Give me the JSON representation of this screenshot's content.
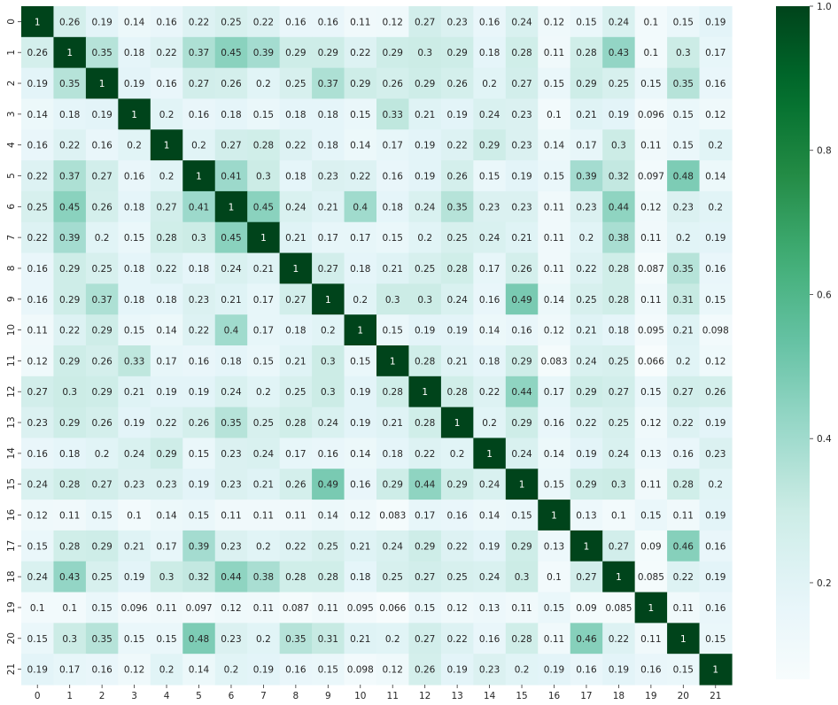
{
  "chart_data": {
    "type": "heatmap",
    "title": "",
    "xlabel": "",
    "ylabel": "",
    "x_labels": [
      "0",
      "1",
      "2",
      "3",
      "4",
      "5",
      "6",
      "7",
      "8",
      "9",
      "10",
      "11",
      "12",
      "13",
      "14",
      "15",
      "16",
      "17",
      "18",
      "19",
      "20",
      "21"
    ],
    "y_labels": [
      "0",
      "1",
      "2",
      "3",
      "4",
      "5",
      "6",
      "7",
      "8",
      "9",
      "10",
      "11",
      "12",
      "13",
      "14",
      "15",
      "16",
      "17",
      "18",
      "19",
      "20",
      "21"
    ],
    "annotations": true,
    "colormap": "BuGn",
    "colors": {
      "low": "#f7fcfd",
      "mid": "#66c2a4",
      "high": "#00441b"
    },
    "vmin": 0.066,
    "vmax": 1.0,
    "colorbar_ticks": [
      "0.2",
      "0.4",
      "0.6",
      "0.8",
      "1.0"
    ],
    "matrix": [
      [
        1,
        0.26,
        0.19,
        0.14,
        0.16,
        0.22,
        0.25,
        0.22,
        0.16,
        0.16,
        0.11,
        0.12,
        0.27,
        0.23,
        0.16,
        0.24,
        0.12,
        0.15,
        0.24,
        0.1,
        0.15,
        0.19
      ],
      [
        0.26,
        1,
        0.35,
        0.18,
        0.22,
        0.37,
        0.45,
        0.39,
        0.29,
        0.29,
        0.22,
        0.29,
        0.3,
        0.29,
        0.18,
        0.28,
        0.11,
        0.28,
        0.43,
        0.1,
        0.3,
        0.17
      ],
      [
        0.19,
        0.35,
        1,
        0.19,
        0.16,
        0.27,
        0.26,
        0.2,
        0.25,
        0.37,
        0.29,
        0.26,
        0.29,
        0.26,
        0.2,
        0.27,
        0.15,
        0.29,
        0.25,
        0.15,
        0.35,
        0.16
      ],
      [
        0.14,
        0.18,
        0.19,
        1,
        0.2,
        0.16,
        0.18,
        0.15,
        0.18,
        0.18,
        0.15,
        0.33,
        0.21,
        0.19,
        0.24,
        0.23,
        0.1,
        0.21,
        0.19,
        0.096,
        0.15,
        0.12
      ],
      [
        0.16,
        0.22,
        0.16,
        0.2,
        1,
        0.2,
        0.27,
        0.28,
        0.22,
        0.18,
        0.14,
        0.17,
        0.19,
        0.22,
        0.29,
        0.23,
        0.14,
        0.17,
        0.3,
        0.11,
        0.15,
        0.2
      ],
      [
        0.22,
        0.37,
        0.27,
        0.16,
        0.2,
        1,
        0.41,
        0.3,
        0.18,
        0.23,
        0.22,
        0.16,
        0.19,
        0.26,
        0.15,
        0.19,
        0.15,
        0.39,
        0.32,
        0.097,
        0.48,
        0.14
      ],
      [
        0.25,
        0.45,
        0.26,
        0.18,
        0.27,
        0.41,
        1,
        0.45,
        0.24,
        0.21,
        0.4,
        0.18,
        0.24,
        0.35,
        0.23,
        0.23,
        0.11,
        0.23,
        0.44,
        0.12,
        0.23,
        0.2
      ],
      [
        0.22,
        0.39,
        0.2,
        0.15,
        0.28,
        0.3,
        0.45,
        1,
        0.21,
        0.17,
        0.17,
        0.15,
        0.2,
        0.25,
        0.24,
        0.21,
        0.11,
        0.2,
        0.38,
        0.11,
        0.2,
        0.19
      ],
      [
        0.16,
        0.29,
        0.25,
        0.18,
        0.22,
        0.18,
        0.24,
        0.21,
        1,
        0.27,
        0.18,
        0.21,
        0.25,
        0.28,
        0.17,
        0.26,
        0.11,
        0.22,
        0.28,
        0.087,
        0.35,
        0.16
      ],
      [
        0.16,
        0.29,
        0.37,
        0.18,
        0.18,
        0.23,
        0.21,
        0.17,
        0.27,
        1,
        0.2,
        0.3,
        0.3,
        0.24,
        0.16,
        0.49,
        0.14,
        0.25,
        0.28,
        0.11,
        0.31,
        0.15
      ],
      [
        0.11,
        0.22,
        0.29,
        0.15,
        0.14,
        0.22,
        0.4,
        0.17,
        0.18,
        0.2,
        1,
        0.15,
        0.19,
        0.19,
        0.14,
        0.16,
        0.12,
        0.21,
        0.18,
        0.095,
        0.21,
        0.098
      ],
      [
        0.12,
        0.29,
        0.26,
        0.33,
        0.17,
        0.16,
        0.18,
        0.15,
        0.21,
        0.3,
        0.15,
        1,
        0.28,
        0.21,
        0.18,
        0.29,
        0.083,
        0.24,
        0.25,
        0.066,
        0.2,
        0.12
      ],
      [
        0.27,
        0.3,
        0.29,
        0.21,
        0.19,
        0.19,
        0.24,
        0.2,
        0.25,
        0.3,
        0.19,
        0.28,
        1,
        0.28,
        0.22,
        0.44,
        0.17,
        0.29,
        0.27,
        0.15,
        0.27,
        0.26
      ],
      [
        0.23,
        0.29,
        0.26,
        0.19,
        0.22,
        0.26,
        0.35,
        0.25,
        0.28,
        0.24,
        0.19,
        0.21,
        0.28,
        1,
        0.2,
        0.29,
        0.16,
        0.22,
        0.25,
        0.12,
        0.22,
        0.19
      ],
      [
        0.16,
        0.18,
        0.2,
        0.24,
        0.29,
        0.15,
        0.23,
        0.24,
        0.17,
        0.16,
        0.14,
        0.18,
        0.22,
        0.2,
        1,
        0.24,
        0.14,
        0.19,
        0.24,
        0.13,
        0.16,
        0.23
      ],
      [
        0.24,
        0.28,
        0.27,
        0.23,
        0.23,
        0.19,
        0.23,
        0.21,
        0.26,
        0.49,
        0.16,
        0.29,
        0.44,
        0.29,
        0.24,
        1,
        0.15,
        0.29,
        0.3,
        0.11,
        0.28,
        0.2
      ],
      [
        0.12,
        0.11,
        0.15,
        0.1,
        0.14,
        0.15,
        0.11,
        0.11,
        0.11,
        0.14,
        0.12,
        0.083,
        0.17,
        0.16,
        0.14,
        0.15,
        1,
        0.13,
        0.1,
        0.15,
        0.11,
        0.19
      ],
      [
        0.15,
        0.28,
        0.29,
        0.21,
        0.17,
        0.39,
        0.23,
        0.2,
        0.22,
        0.25,
        0.21,
        0.24,
        0.29,
        0.22,
        0.19,
        0.29,
        0.13,
        1,
        0.27,
        0.09,
        0.46,
        0.16
      ],
      [
        0.24,
        0.43,
        0.25,
        0.19,
        0.3,
        0.32,
        0.44,
        0.38,
        0.28,
        0.28,
        0.18,
        0.25,
        0.27,
        0.25,
        0.24,
        0.3,
        0.1,
        0.27,
        1,
        0.085,
        0.22,
        0.19
      ],
      [
        0.1,
        0.1,
        0.15,
        0.096,
        0.11,
        0.097,
        0.12,
        0.11,
        0.087,
        0.11,
        0.095,
        0.066,
        0.15,
        0.12,
        0.13,
        0.11,
        0.15,
        0.09,
        0.085,
        1,
        0.11,
        0.16
      ],
      [
        0.15,
        0.3,
        0.35,
        0.15,
        0.15,
        0.48,
        0.23,
        0.2,
        0.35,
        0.31,
        0.21,
        0.2,
        0.27,
        0.22,
        0.16,
        0.28,
        0.11,
        0.46,
        0.22,
        0.11,
        1,
        0.15
      ],
      [
        0.19,
        0.17,
        0.16,
        0.12,
        0.2,
        0.14,
        0.2,
        0.19,
        0.16,
        0.15,
        0.098,
        0.12,
        0.26,
        0.19,
        0.23,
        0.2,
        0.19,
        0.16,
        0.19,
        0.16,
        0.15,
        1
      ]
    ]
  }
}
